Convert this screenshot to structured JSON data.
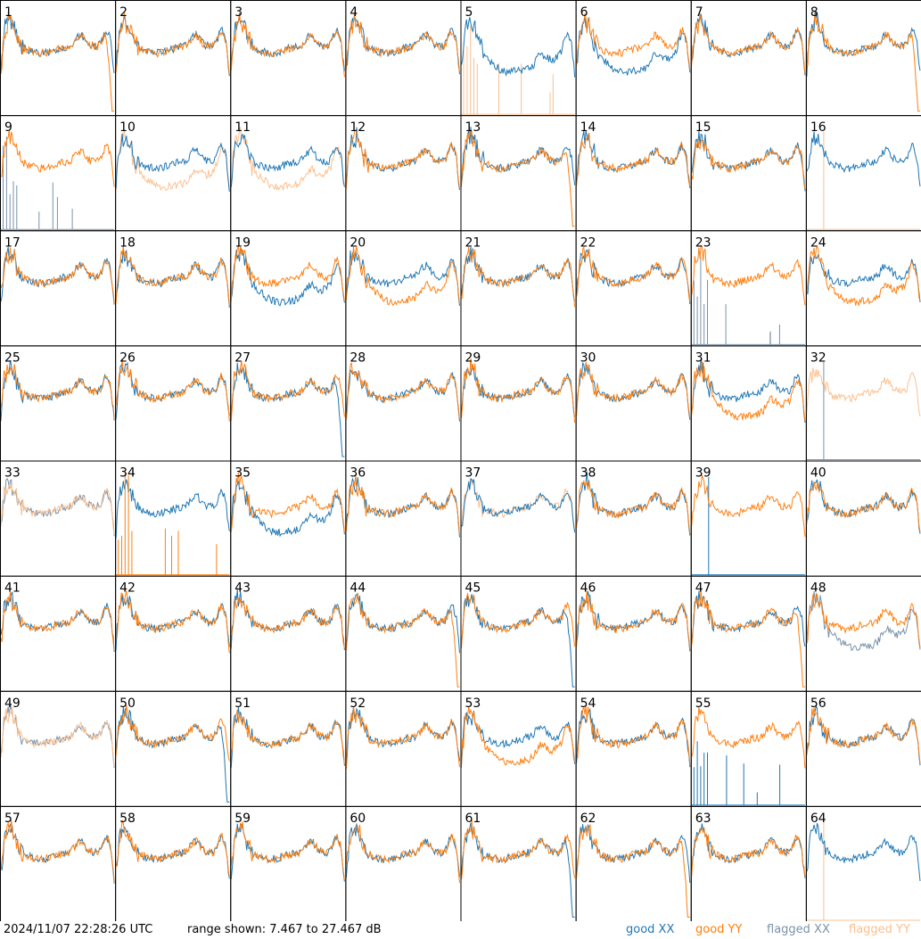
{
  "footer": {
    "timestamp": "2024/11/07 22:28:26 UTC",
    "range_text": "range shown: 7.467 to 27.467 dB"
  },
  "legend": [
    {
      "label": "good XX",
      "color": "#1f77b4"
    },
    {
      "label": "good YY",
      "color": "#ff7f0e"
    },
    {
      "label": "flagged XX",
      "color": "#7a92aa"
    },
    {
      "label": "flagged YY",
      "color": "#fbc08f"
    }
  ],
  "chart_data": {
    "type": "line",
    "y_range_db": [
      7.467,
      27.467
    ],
    "grid_rows": 8,
    "grid_cols": 8,
    "series_styles": {
      "good_xx": "#1f77b4",
      "good_yy": "#ff7f0e",
      "flagged_xx": "#7a92aa",
      "flagged_yy": "#fbc08f"
    },
    "panels": [
      {
        "id": "1",
        "xx": "good_xx:normal",
        "yy": "good_yy:dropend"
      },
      {
        "id": "2",
        "xx": "good_xx:normal",
        "yy": "good_yy:normal"
      },
      {
        "id": "3",
        "xx": "good_xx:normal",
        "yy": "good_yy:normal"
      },
      {
        "id": "4",
        "xx": "good_xx:normal",
        "yy": "good_yy:normal"
      },
      {
        "id": "5",
        "xx": "good_xx:low",
        "yy": "flagged_yy:spikes"
      },
      {
        "id": "6",
        "xx": "good_xx:low",
        "yy": "good_yy:normal"
      },
      {
        "id": "7",
        "xx": "good_xx:normal",
        "yy": "good_yy:normal"
      },
      {
        "id": "8",
        "xx": "good_xx:normal",
        "yy": "good_yy:dropend"
      },
      {
        "id": "9",
        "xx": "flagged_xx:spikes",
        "yy": "good_yy:normal"
      },
      {
        "id": "10",
        "xx": "good_xx:normal",
        "yy": "flagged_yy:low"
      },
      {
        "id": "11",
        "xx": "good_xx:normal",
        "yy": "flagged_yy:low"
      },
      {
        "id": "12",
        "xx": "good_xx:normal",
        "yy": "good_yy:normal"
      },
      {
        "id": "13",
        "xx": "good_xx:normal",
        "yy": "good_yy:dropend"
      },
      {
        "id": "14",
        "xx": "good_xx:normal",
        "yy": "good_yy:normal"
      },
      {
        "id": "15",
        "xx": "good_xx:normal",
        "yy": "good_yy:normal"
      },
      {
        "id": "16",
        "xx": "good_xx:normal",
        "yy": "flagged_yy:spike1"
      },
      {
        "id": "17",
        "xx": "good_xx:normal",
        "yy": "good_yy:normal"
      },
      {
        "id": "18",
        "xx": "good_xx:normal",
        "yy": "good_yy:normal"
      },
      {
        "id": "19",
        "xx": "good_xx:low",
        "yy": "good_yy:normal"
      },
      {
        "id": "20",
        "xx": "good_xx:normal",
        "yy": "good_yy:low"
      },
      {
        "id": "21",
        "xx": "good_xx:normal",
        "yy": "good_yy:normal"
      },
      {
        "id": "22",
        "xx": "good_xx:normal",
        "yy": "good_yy:normal"
      },
      {
        "id": "23",
        "xx": "flagged_xx:spikes",
        "yy": "good_yy:normal"
      },
      {
        "id": "24",
        "xx": "good_xx:normal",
        "yy": "good_yy:low"
      },
      {
        "id": "25",
        "xx": "good_xx:normal",
        "yy": "good_yy:normal"
      },
      {
        "id": "26",
        "xx": "good_xx:normal",
        "yy": "good_yy:normal"
      },
      {
        "id": "27",
        "xx": "good_xx:dropend",
        "yy": "good_yy:normal"
      },
      {
        "id": "28",
        "xx": "good_xx:normal",
        "yy": "good_yy:normal"
      },
      {
        "id": "29",
        "xx": "good_xx:normal",
        "yy": "good_yy:normal"
      },
      {
        "id": "30",
        "xx": "good_xx:normal",
        "yy": "good_yy:normal"
      },
      {
        "id": "31",
        "xx": "good_xx:normal",
        "yy": "good_yy:low"
      },
      {
        "id": "32",
        "xx": "flagged_xx:spike1",
        "yy": "flagged_yy:normal"
      },
      {
        "id": "33",
        "xx": "flagged_xx:normal",
        "yy": "flagged_yy:normal"
      },
      {
        "id": "34",
        "xx": "good_xx:normal",
        "yy": "good_yy:spikes"
      },
      {
        "id": "35",
        "xx": "good_xx:low",
        "yy": "good_yy:normal"
      },
      {
        "id": "36",
        "xx": "good_xx:normal",
        "yy": "good_yy:normal"
      },
      {
        "id": "37",
        "xx": "good_xx:normal",
        "yy": "flagged_yy:normal"
      },
      {
        "id": "38",
        "xx": "good_xx:normal",
        "yy": "good_yy:normal"
      },
      {
        "id": "39",
        "xx": "good_xx:spike1",
        "yy": "good_yy:normal"
      },
      {
        "id": "40",
        "xx": "good_xx:normal",
        "yy": "good_yy:normal"
      },
      {
        "id": "41",
        "xx": "good_xx:normal",
        "yy": "good_yy:normal"
      },
      {
        "id": "42",
        "xx": "good_xx:normal",
        "yy": "good_yy:normal"
      },
      {
        "id": "43",
        "xx": "good_xx:normal",
        "yy": "good_yy:normal"
      },
      {
        "id": "44",
        "xx": "good_xx:normal",
        "yy": "good_yy:dropend"
      },
      {
        "id": "45",
        "xx": "good_xx:dropend",
        "yy": "good_yy:normal"
      },
      {
        "id": "46",
        "xx": "good_xx:normal",
        "yy": "good_yy:normal"
      },
      {
        "id": "47",
        "xx": "good_xx:normal",
        "yy": "good_yy:dropend"
      },
      {
        "id": "48",
        "xx": "flagged_xx:low",
        "yy": "good_yy:normal"
      },
      {
        "id": "49",
        "xx": "flagged_xx:normal",
        "yy": "flagged_yy:normal"
      },
      {
        "id": "50",
        "xx": "good_xx:dropend",
        "yy": "good_yy:normal"
      },
      {
        "id": "51",
        "xx": "good_xx:normal",
        "yy": "good_yy:normal"
      },
      {
        "id": "52",
        "xx": "good_xx:normal",
        "yy": "good_yy:normal"
      },
      {
        "id": "53",
        "xx": "good_xx:normal",
        "yy": "good_yy:low"
      },
      {
        "id": "54",
        "xx": "good_xx:normal",
        "yy": "good_yy:normal"
      },
      {
        "id": "55",
        "xx": "good_xx:spikes",
        "yy": "good_yy:normal"
      },
      {
        "id": "56",
        "xx": "good_xx:normal",
        "yy": "good_yy:normal"
      },
      {
        "id": "57",
        "xx": "good_xx:normal",
        "yy": "good_yy:normal"
      },
      {
        "id": "58",
        "xx": "good_xx:normal",
        "yy": "good_yy:normal"
      },
      {
        "id": "59",
        "xx": "good_xx:normal",
        "yy": "good_yy:normal"
      },
      {
        "id": "60",
        "xx": "good_xx:normal",
        "yy": "good_yy:normal"
      },
      {
        "id": "61",
        "xx": "good_xx:dropend",
        "yy": "good_yy:normal"
      },
      {
        "id": "62",
        "xx": "good_xx:normal",
        "yy": "good_yy:dropend"
      },
      {
        "id": "63",
        "xx": "good_xx:normal",
        "yy": "good_yy:normal"
      },
      {
        "id": "64",
        "xx": "good_xx:normal",
        "yy": "flagged_yy:spike1"
      }
    ]
  }
}
